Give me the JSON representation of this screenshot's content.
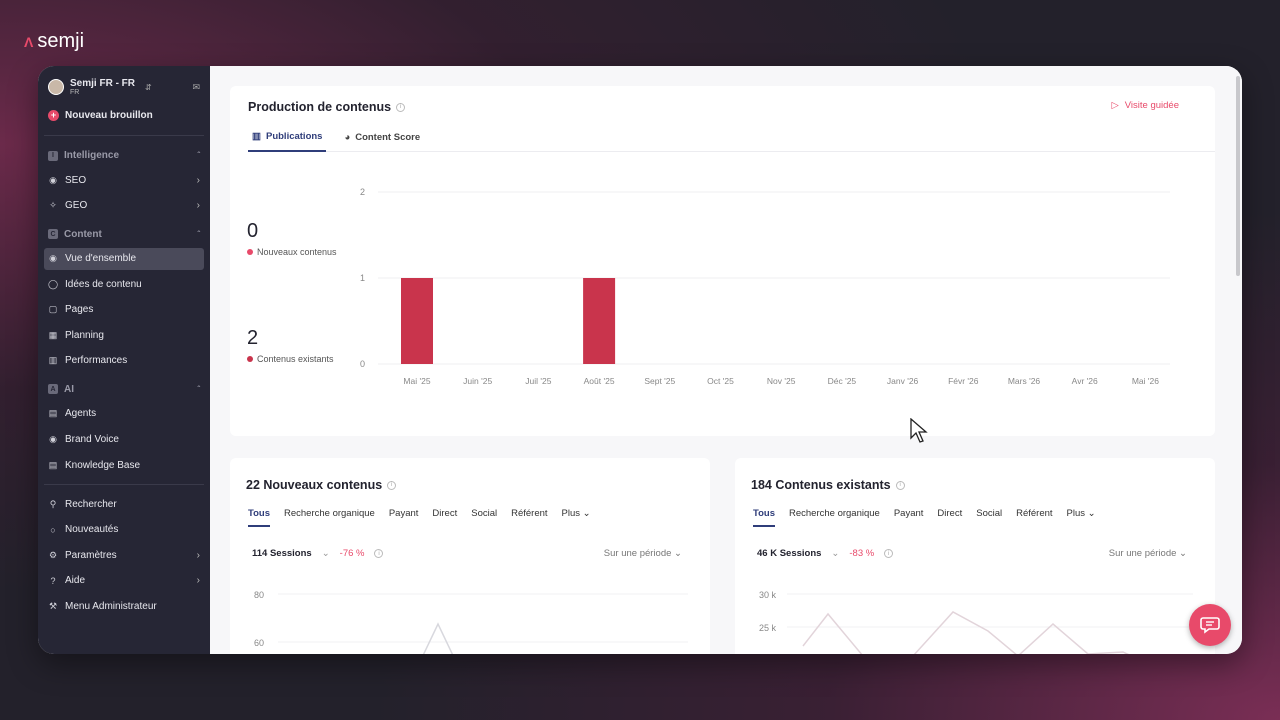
{
  "brand": {
    "name": "semji"
  },
  "workspace": {
    "name": "Semji FR - FR",
    "sub": "FR"
  },
  "sidebar": {
    "new_draft": "Nouveau brouillon",
    "sections": [
      {
        "label": "Intelligence",
        "badge": "I",
        "items": [
          {
            "label": "SEO",
            "icon": "globe-icon",
            "arrow": true
          },
          {
            "label": "GEO",
            "icon": "sparkle-icon",
            "arrow": true
          }
        ]
      },
      {
        "label": "Content",
        "badge": "C",
        "items": [
          {
            "label": "Vue d'ensemble",
            "icon": "eye-icon",
            "active": true
          },
          {
            "label": "Idées de contenu",
            "icon": "bulb-icon"
          },
          {
            "label": "Pages",
            "icon": "page-icon"
          },
          {
            "label": "Planning",
            "icon": "calendar-icon"
          },
          {
            "label": "Performances",
            "icon": "chart-icon"
          }
        ]
      },
      {
        "label": "AI",
        "badge": "A",
        "items": [
          {
            "label": "Agents",
            "icon": "agent-icon"
          },
          {
            "label": "Brand Voice",
            "icon": "voice-icon"
          },
          {
            "label": "Knowledge Base",
            "icon": "book-icon"
          }
        ]
      }
    ],
    "bottom": [
      {
        "label": "Rechercher",
        "icon": "search-icon"
      },
      {
        "label": "Nouveautés",
        "icon": "bell-icon"
      },
      {
        "label": "Paramètres",
        "icon": "gear-icon",
        "arrow": true
      },
      {
        "label": "Aide",
        "icon": "help-icon",
        "arrow": true
      },
      {
        "label": "Menu Administrateur",
        "icon": "tools-icon"
      }
    ]
  },
  "production": {
    "title": "Production de contenus",
    "guided": "Visite guidée",
    "tabs": [
      "Publications",
      "Content Score"
    ],
    "stats": [
      {
        "value": "0",
        "label": "Nouveaux contenus",
        "color": "#e84a6a"
      },
      {
        "value": "2",
        "label": "Contenus existants",
        "color": "#c9344c"
      }
    ]
  },
  "chart_data": {
    "type": "bar",
    "categories": [
      "Mai '25",
      "Juin '25",
      "Juil '25",
      "Août '25",
      "Sept '25",
      "Oct '25",
      "Nov '25",
      "Déc '25",
      "Janv '26",
      "Févr '26",
      "Mars '26",
      "Avr '26",
      "Mai '26"
    ],
    "values": [
      1,
      0,
      0,
      1,
      0,
      0,
      0,
      0,
      0,
      0,
      0,
      0,
      0
    ],
    "ylim": [
      0,
      2
    ],
    "yticks": [
      "0",
      "1",
      "2"
    ],
    "bar_color": "#c9344c",
    "grid": true
  },
  "new_contents": {
    "title": "22 Nouveaux contenus",
    "tabs": [
      "Tous",
      "Recherche organique",
      "Payant",
      "Direct",
      "Social",
      "Référent",
      "Plus"
    ],
    "sessions": "114 Sessions",
    "delta": "-76 %",
    "period": "Sur une période",
    "yticks": [
      "80",
      "60"
    ]
  },
  "existing_contents": {
    "title": "184 Contenus existants",
    "tabs": [
      "Tous",
      "Recherche organique",
      "Payant",
      "Direct",
      "Social",
      "Référent",
      "Plus"
    ],
    "sessions": "46 K Sessions",
    "delta": "-83 %",
    "period": "Sur une période",
    "yticks": [
      "30 k",
      "25 k"
    ]
  }
}
